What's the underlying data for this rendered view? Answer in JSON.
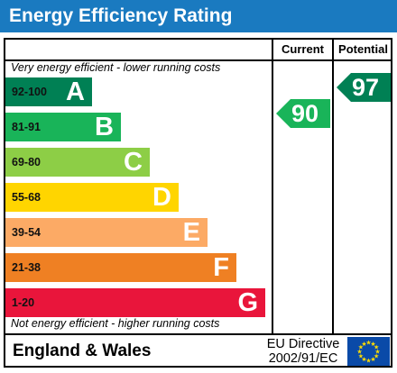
{
  "title": "Energy Efficiency Rating",
  "columns": {
    "current": "Current",
    "potential": "Potential"
  },
  "top_note": "Very energy efficient - lower running costs",
  "bottom_note": "Not energy efficient - higher running costs",
  "bands": [
    {
      "range": "92-100",
      "letter": "A",
      "color": "#008054"
    },
    {
      "range": "81-91",
      "letter": "B",
      "color": "#19b459"
    },
    {
      "range": "69-80",
      "letter": "C",
      "color": "#8dce46"
    },
    {
      "range": "55-68",
      "letter": "D",
      "color": "#ffd500"
    },
    {
      "range": "39-54",
      "letter": "E",
      "color": "#fcaa65"
    },
    {
      "range": "21-38",
      "letter": "F",
      "color": "#ef8023"
    },
    {
      "range": "1-20",
      "letter": "G",
      "color": "#e9153b"
    }
  ],
  "current": {
    "value": "90",
    "band": "B",
    "color": "#19b459"
  },
  "potential": {
    "value": "97",
    "band": "A",
    "color": "#008054"
  },
  "footer": {
    "region": "England & Wales",
    "directive_line1": "EU Directive",
    "directive_line2": "2002/91/EC",
    "flag_icon": "eu-flag-icon"
  }
}
